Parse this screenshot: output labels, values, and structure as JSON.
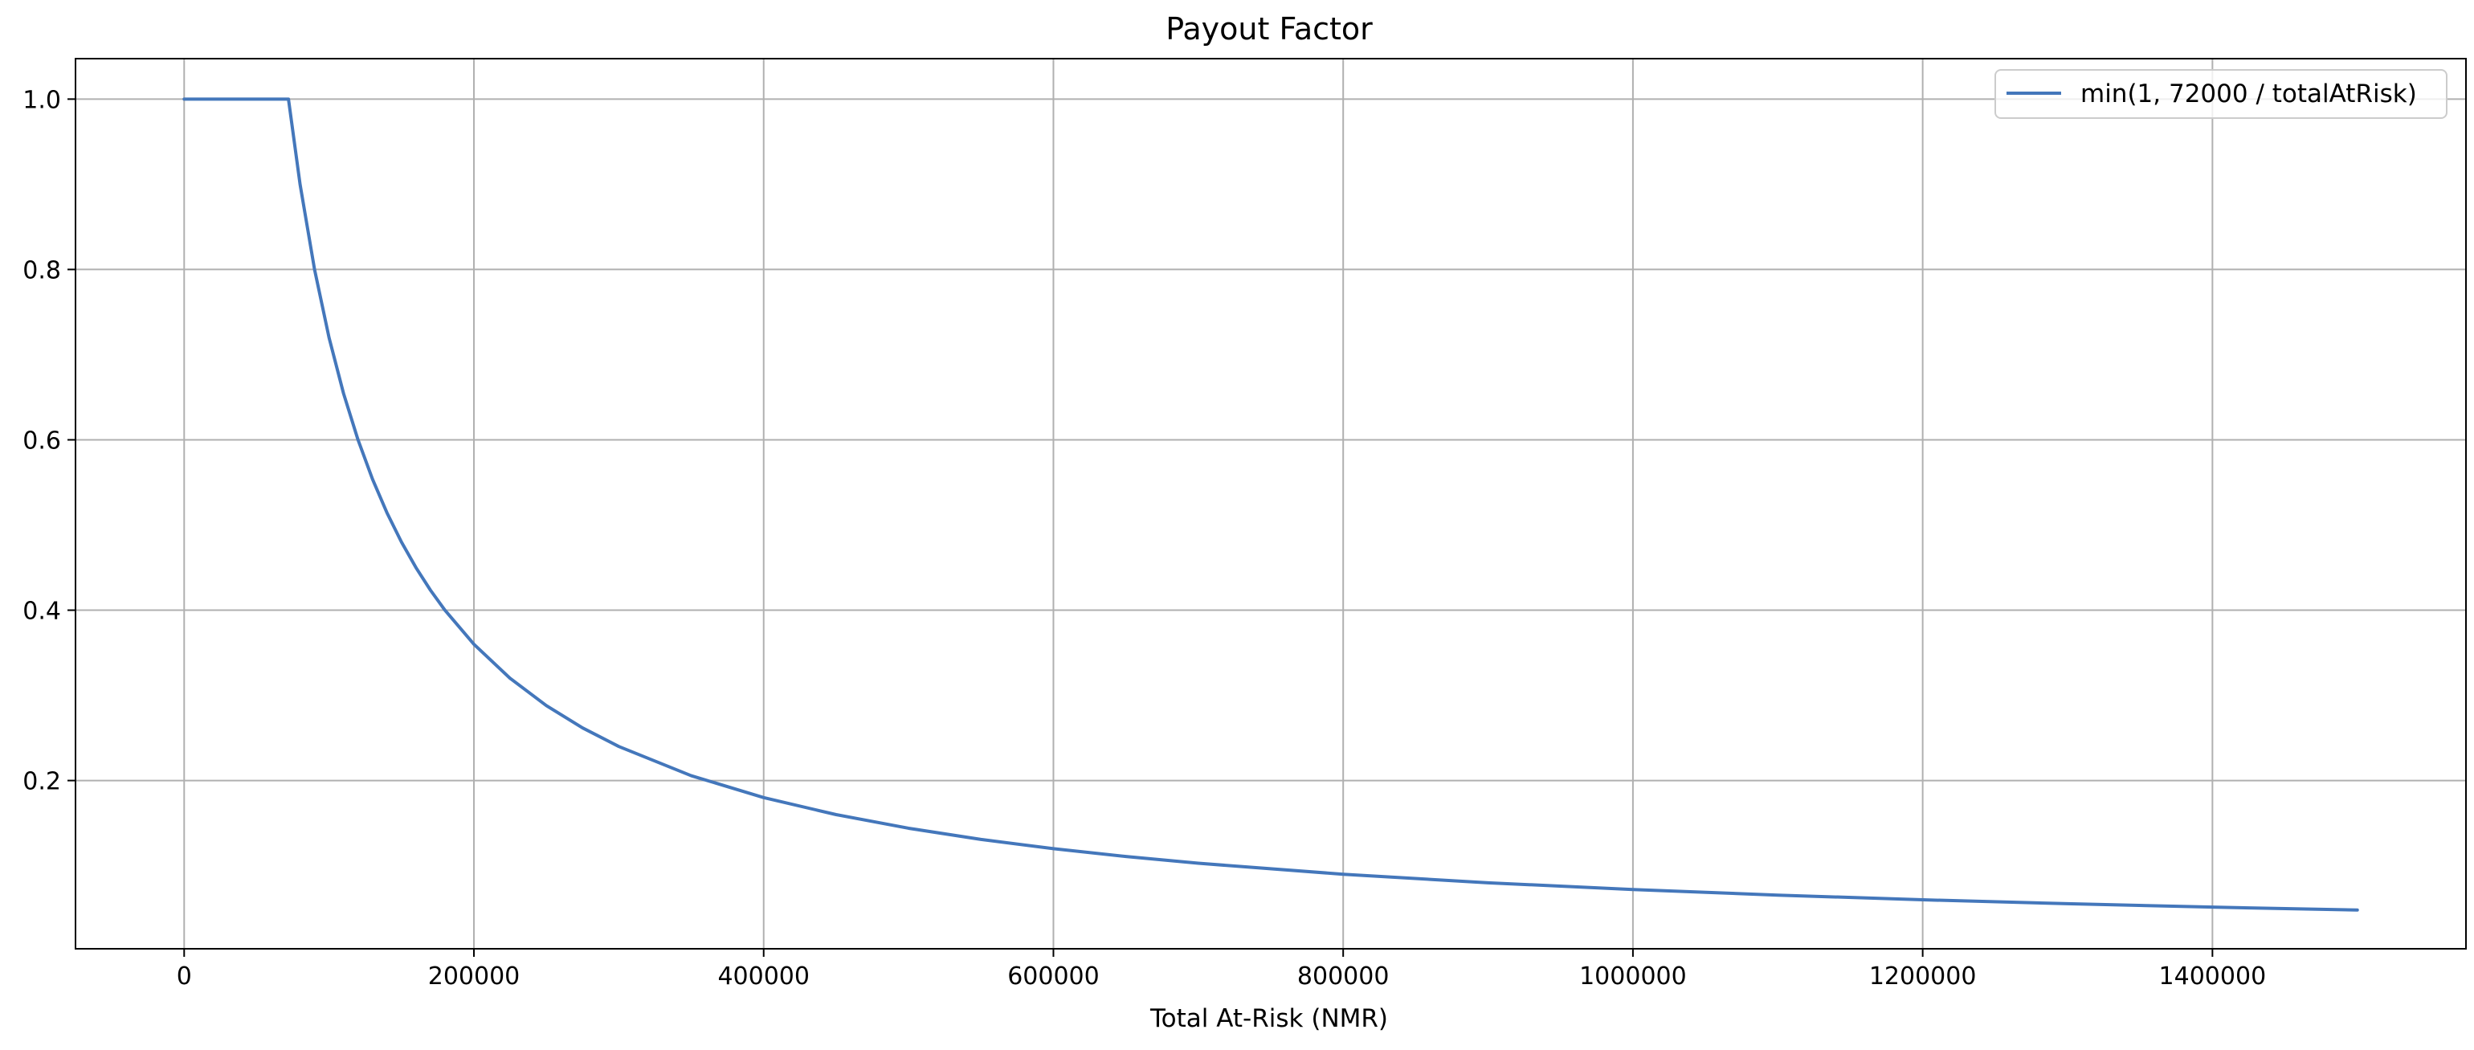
{
  "chart_data": {
    "type": "line",
    "title": "Payout Factor",
    "xlabel": "Total At-Risk (NMR)",
    "ylabel": "",
    "xlim": [
      -75000,
      1575000
    ],
    "ylim": [
      0.0025,
      1.0475
    ],
    "x_ticks": [
      0,
      200000,
      400000,
      600000,
      800000,
      1000000,
      1200000,
      1400000
    ],
    "x_tick_labels": [
      "0",
      "200000",
      "400000",
      "600000",
      "800000",
      "1000000",
      "1200000",
      "1400000"
    ],
    "y_ticks": [
      0.2,
      0.4,
      0.6,
      0.8,
      1.0
    ],
    "y_tick_labels": [
      "0.2",
      "0.4",
      "0.6",
      "0.8",
      "1.0"
    ],
    "grid": true,
    "legend_position": "top-right",
    "series": [
      {
        "name": "min(1, 72000 / totalAtRisk)",
        "color": "#4477bb",
        "x": [
          0,
          72000,
          80000,
          90000,
          100000,
          110000,
          120000,
          130000,
          140000,
          150000,
          160000,
          170000,
          180000,
          200000,
          225000,
          250000,
          275000,
          300000,
          350000,
          400000,
          450000,
          500000,
          550000,
          600000,
          650000,
          700000,
          800000,
          900000,
          1000000,
          1100000,
          1200000,
          1300000,
          1400000,
          1500000
        ],
        "y": [
          1.0,
          1.0,
          0.9,
          0.8,
          0.72,
          0.6545,
          0.6,
          0.5538,
          0.5143,
          0.48,
          0.45,
          0.4235,
          0.4,
          0.36,
          0.32,
          0.288,
          0.2618,
          0.24,
          0.2057,
          0.18,
          0.16,
          0.144,
          0.1309,
          0.12,
          0.1108,
          0.1029,
          0.09,
          0.08,
          0.072,
          0.0655,
          0.06,
          0.0554,
          0.0514,
          0.048
        ]
      }
    ]
  }
}
